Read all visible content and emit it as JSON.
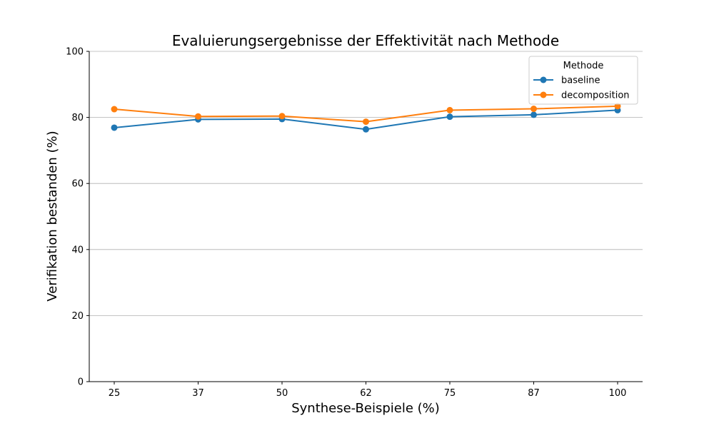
{
  "chart_data": {
    "type": "line",
    "title": "Evaluierungsergebnisse der Effektivität nach Methode",
    "xlabel": "Synthese-Beispiele (%)",
    "ylabel": "Verifikation bestanden (%)",
    "categories": [
      "25",
      "37",
      "50",
      "62",
      "75",
      "87",
      "100"
    ],
    "ylim": [
      0,
      100
    ],
    "yticks": [
      "0",
      "20",
      "40",
      "60",
      "80",
      "100"
    ],
    "grid": "horizontal",
    "legend": {
      "title": "Methode",
      "placement": "top-right"
    },
    "series": [
      {
        "name": "baseline",
        "color": "#1f77b4",
        "values": [
          76.9,
          79.4,
          79.5,
          76.4,
          80.2,
          80.8,
          82.2
        ]
      },
      {
        "name": "decomposition",
        "color": "#ff7f0e",
        "values": [
          82.5,
          80.3,
          80.4,
          78.7,
          82.2,
          82.6,
          83.4
        ]
      }
    ]
  }
}
